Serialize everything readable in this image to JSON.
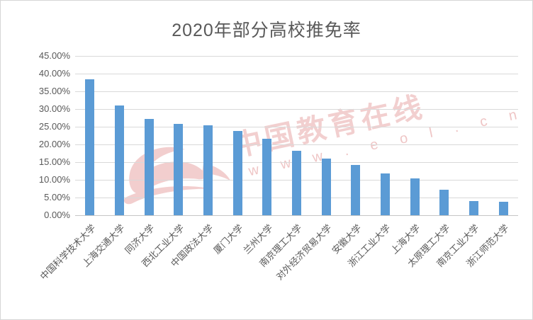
{
  "chart_data": {
    "type": "bar",
    "title": "2020年部分高校推免率",
    "categories": [
      "中国科学技术大学",
      "上海交通大学",
      "同济大学",
      "西北工业大学",
      "中国政法大学",
      "厦门大学",
      "兰州大学",
      "南京理工大学",
      "对外经济贸易大学",
      "安徽大学",
      "浙江工业大学",
      "上海大学",
      "太原理工大学",
      "南京工业大学",
      "浙江师范大学"
    ],
    "values": [
      38.4,
      31.1,
      27.3,
      25.8,
      25.5,
      23.8,
      21.7,
      18.2,
      16.0,
      14.3,
      11.9,
      10.4,
      7.2,
      4.0,
      3.8
    ],
    "unit": "percent",
    "ylim": [
      0,
      45
    ],
    "ytick_step": 5,
    "ytick_labels": [
      "0.00%",
      "5.00%",
      "10.00%",
      "15.00%",
      "20.00%",
      "25.00%",
      "30.00%",
      "35.00%",
      "40.00%",
      "45.00%"
    ],
    "grid": true,
    "legend": false,
    "bar_color": "#5b9bd5",
    "gridline_color": "#d9d9d9",
    "axis_label_color": "#595959",
    "title_color": "#595959"
  },
  "watermark": {
    "line1": "中国教育在线",
    "line2": "w w w . e o l . c n",
    "color": "#e08c8c"
  }
}
